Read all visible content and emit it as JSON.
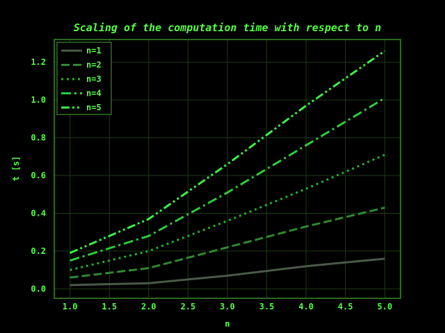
{
  "chart_data": {
    "type": "line",
    "title": "Scaling of the computation time with respect to n",
    "xlabel": "n",
    "ylabel": "t [s]",
    "x": [
      1.0,
      2.0,
      3.0,
      4.0,
      5.0
    ],
    "xlim": [
      0.8,
      5.2
    ],
    "ylim": [
      -0.05,
      1.32
    ],
    "xticks": [
      "1.0",
      "1.5",
      "2.0",
      "2.5",
      "3.0",
      "3.5",
      "4.0",
      "4.5",
      "5.0"
    ],
    "yticks": [
      "0.0",
      "0.2",
      "0.4",
      "0.6",
      "0.8",
      "1.0",
      "1.2"
    ],
    "grid": true,
    "legend_position": "top-left",
    "series": [
      {
        "name": "n=1",
        "style": "solid",
        "color": "#4a5a48",
        "values": [
          0.02,
          0.03,
          0.07,
          0.12,
          0.16
        ]
      },
      {
        "name": "n=2",
        "style": "dashed",
        "color": "#2f8a2f",
        "values": [
          0.06,
          0.11,
          0.22,
          0.33,
          0.43
        ]
      },
      {
        "name": "n=3",
        "style": "dotted",
        "color": "#22b02a",
        "values": [
          0.1,
          0.2,
          0.36,
          0.53,
          0.71
        ]
      },
      {
        "name": "n=4",
        "style": "dashdot",
        "color": "#2ecc3a",
        "values": [
          0.15,
          0.28,
          0.51,
          0.76,
          1.01
        ]
      },
      {
        "name": "n=5",
        "style": "dashdotdot",
        "color": "#3cf04a",
        "values": [
          0.19,
          0.37,
          0.66,
          0.97,
          1.26
        ]
      }
    ]
  }
}
